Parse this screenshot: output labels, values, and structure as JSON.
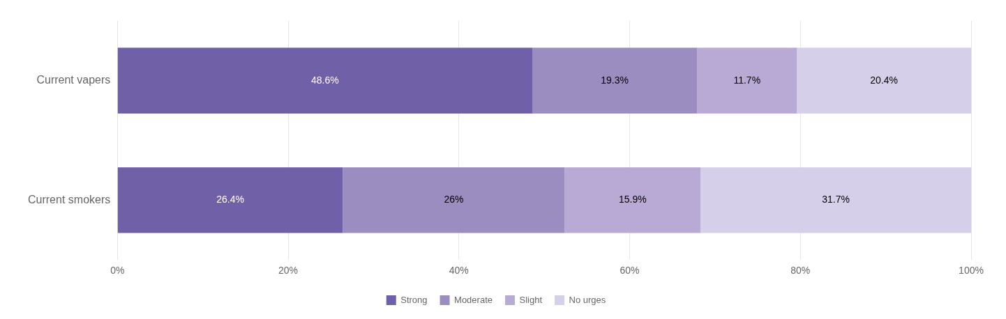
{
  "chart_data": {
    "type": "bar",
    "orientation": "horizontal",
    "stacked": true,
    "categories": [
      "Current vapers",
      "Current smokers"
    ],
    "series": [
      {
        "name": "Strong",
        "color": "#7060a8",
        "values": [
          48.6,
          26.4
        ],
        "value_labels": [
          "48.6%",
          "26.4%"
        ]
      },
      {
        "name": "Moderate",
        "color": "#9b8dc0",
        "values": [
          19.3,
          26.0
        ],
        "value_labels": [
          "19.3%",
          "26%"
        ]
      },
      {
        "name": "Slight",
        "color": "#b8aad4",
        "values": [
          11.7,
          15.9
        ],
        "value_labels": [
          "11.7%",
          "15.9%"
        ]
      },
      {
        "name": "No urges",
        "color": "#d6cfea",
        "values": [
          20.4,
          31.7
        ],
        "value_labels": [
          "20.4%",
          "31.7%"
        ]
      }
    ],
    "xlim": [
      0,
      100
    ],
    "xticks": [
      {
        "value": 0,
        "label": "0%"
      },
      {
        "value": 20,
        "label": "20%"
      },
      {
        "value": 40,
        "label": "40%"
      },
      {
        "value": 60,
        "label": "60%"
      },
      {
        "value": 80,
        "label": "80%"
      },
      {
        "value": 100,
        "label": "100%"
      }
    ],
    "grid": true,
    "legend": "bottom",
    "data_labels": true
  }
}
